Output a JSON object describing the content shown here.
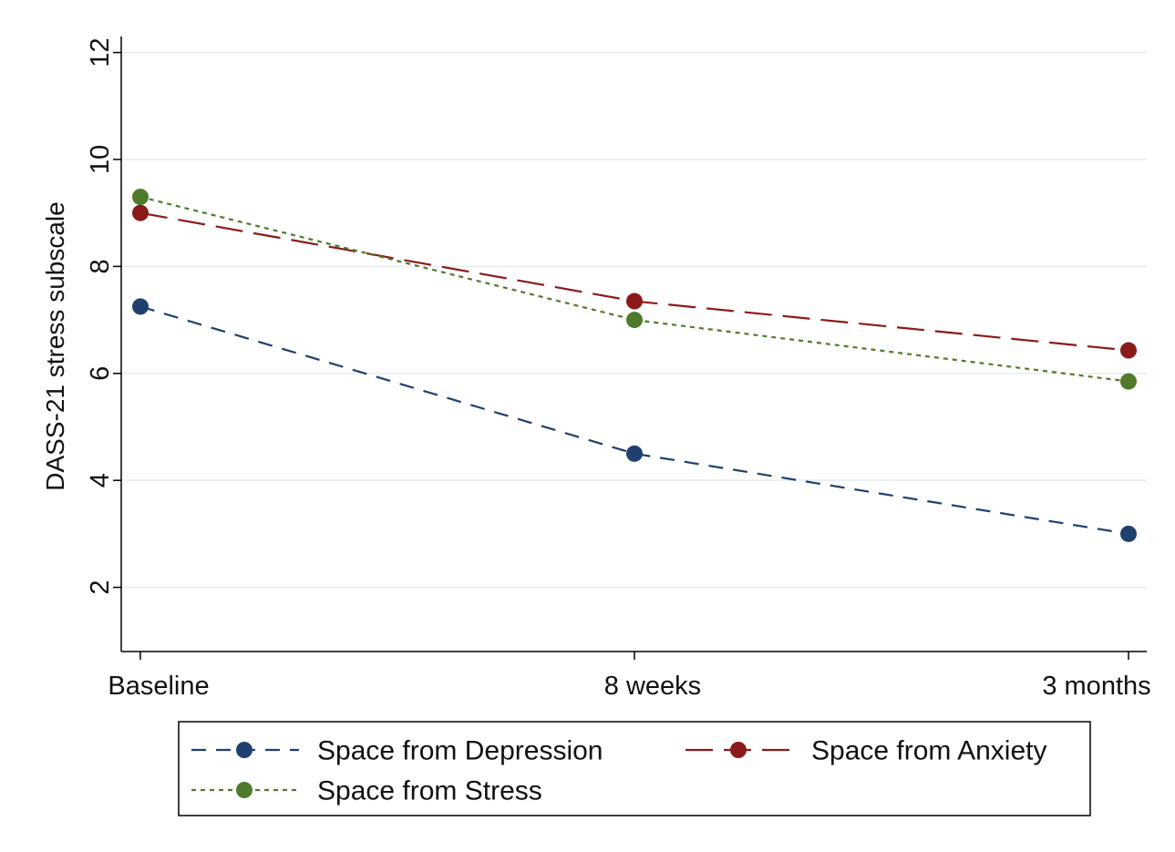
{
  "chart_data": {
    "type": "line",
    "categories": [
      "Baseline",
      "8 weeks",
      "3 months"
    ],
    "ylabel": "DASS-21 stress subscale",
    "xlabel": "",
    "ylim": [
      0.8,
      12.3
    ],
    "yticks": [
      2,
      4,
      6,
      8,
      10,
      12
    ],
    "grid": true,
    "legend_position": "bottom",
    "series": [
      {
        "name": "Space from Depression",
        "values": [
          7.25,
          4.5,
          3.0
        ],
        "color": "#1f3f6e",
        "dash": "dashed"
      },
      {
        "name": "Space from Anxiety",
        "values": [
          9.0,
          7.35,
          6.43
        ],
        "color": "#8b1a1a",
        "dash": "longdash"
      },
      {
        "name": "Space from Stress",
        "values": [
          9.3,
          7.0,
          5.85
        ],
        "color": "#4e7a2a",
        "dash": "dotted"
      }
    ]
  }
}
